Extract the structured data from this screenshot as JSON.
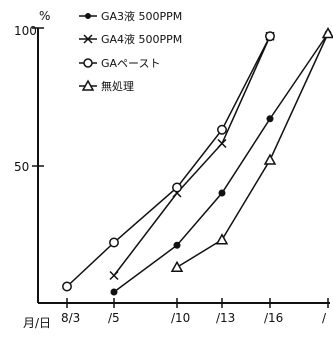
{
  "chart_data": {
    "type": "line",
    "x": [
      "8/3",
      "/5",
      "/10",
      "/13",
      "/16",
      "/"
    ],
    "series": [
      {
        "name": "GA3液 500PPM",
        "marker": "dot",
        "values": [
          null,
          4,
          21,
          40,
          67,
          98
        ]
      },
      {
        "name": "GA4液 500PPM",
        "marker": "x",
        "values": [
          null,
          10,
          40,
          58,
          97,
          null
        ]
      },
      {
        "name": "GAペースト",
        "marker": "circle",
        "values": [
          6,
          22,
          42,
          63,
          97,
          null
        ]
      },
      {
        "name": "無処理",
        "marker": "triangle",
        "values": [
          null,
          null,
          13,
          23,
          52,
          98
        ]
      }
    ],
    "yticks": [
      "100",
      "50"
    ],
    "ytick_values": [
      100,
      50
    ],
    "y_unit": "%",
    "x_prefix": "月/日",
    "ylim": [
      0,
      100
    ],
    "grid": false,
    "legend_position": "top-left"
  }
}
